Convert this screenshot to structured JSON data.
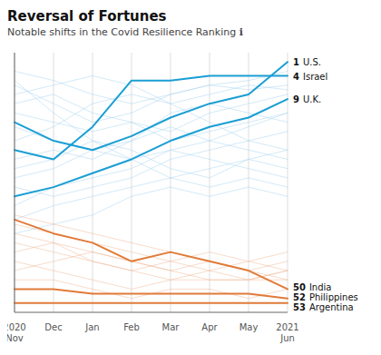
{
  "chart_data": {
    "type": "line",
    "title": "Reversal of Fortunes",
    "subtitle": "Notable shifts in the Covid Resilience Ranking ℹ",
    "categories": [
      "2020\nNov",
      "Dec",
      "Jan",
      "Feb",
      "Mar",
      "Apr",
      "May",
      "2021\nJun"
    ],
    "ylim": [
      55,
      -1
    ],
    "grid": true,
    "tick_labels": "x",
    "series": [
      {
        "color": "#a8d4ef",
        "values": [
          5,
          12,
          18,
          22,
          20,
          18,
          15,
          12
        ]
      },
      {
        "color": "#a8d4ef",
        "values": [
          10,
          8,
          12,
          14,
          16,
          12,
          10,
          8
        ]
      },
      {
        "color": "#a8d4ef",
        "values": [
          18,
          15,
          10,
          8,
          10,
          14,
          18,
          20
        ]
      },
      {
        "color": "#a8d4ef",
        "values": [
          22,
          20,
          22,
          18,
          15,
          18,
          20,
          22
        ]
      },
      {
        "color": "#a8d4ef",
        "values": [
          28,
          30,
          28,
          26,
          22,
          20,
          18,
          16
        ]
      },
      {
        "color": "#a8d4ef",
        "values": [
          32,
          28,
          26,
          24,
          20,
          22,
          24,
          26
        ]
      },
      {
        "color": "#a8d4ef",
        "values": [
          6,
          10,
          14,
          12,
          8,
          6,
          7,
          6
        ]
      },
      {
        "color": "#a8d4ef",
        "values": [
          15,
          18,
          20,
          18,
          12,
          10,
          12,
          14
        ]
      },
      {
        "color": "#a8d4ef",
        "values": [
          24,
          22,
          18,
          20,
          24,
          26,
          22,
          20
        ]
      },
      {
        "color": "#a8d4ef",
        "values": [
          35,
          32,
          30,
          28,
          26,
          24,
          22,
          24
        ]
      },
      {
        "color": "#a8d4ef",
        "values": [
          38,
          36,
          34,
          30,
          28,
          30,
          28,
          30
        ]
      },
      {
        "color": "#a8d4ef",
        "values": [
          3,
          5,
          8,
          10,
          8,
          6,
          5,
          3
        ]
      },
      {
        "color": "#a8d4ef",
        "values": [
          8,
          6,
          4,
          6,
          10,
          8,
          6,
          7
        ]
      },
      {
        "color": "#a8d4ef",
        "values": [
          12,
          14,
          16,
          14,
          18,
          16,
          14,
          12
        ]
      },
      {
        "color": "#a8d4ef",
        "values": [
          26,
          24,
          20,
          22,
          26,
          28,
          26,
          28
        ]
      },
      {
        "color": "#f0b896",
        "values": [
          40,
          42,
          44,
          46,
          44,
          42,
          44,
          46
        ]
      },
      {
        "color": "#f0b896",
        "values": [
          44,
          46,
          48,
          50,
          48,
          46,
          48,
          48
        ]
      },
      {
        "color": "#f0b896",
        "values": [
          46,
          44,
          42,
          44,
          46,
          48,
          48,
          46
        ]
      },
      {
        "color": "#f0b896",
        "values": [
          36,
          38,
          40,
          42,
          44,
          46,
          44,
          42
        ]
      },
      {
        "color": "#f0b896",
        "values": [
          42,
          40,
          42,
          44,
          46,
          44,
          46,
          48
        ]
      },
      {
        "color": "#f0b896",
        "values": [
          48,
          48,
          50,
          52,
          50,
          50,
          52,
          50
        ]
      },
      {
        "color": "#f0b896",
        "values": [
          38,
          40,
          44,
          46,
          48,
          48,
          48,
          46
        ]
      },
      {
        "color": "#f0b896",
        "values": [
          34,
          36,
          38,
          40,
          42,
          44,
          46,
          44
        ]
      },
      {
        "name": "U.S.",
        "color": "#1a9ed4",
        "values": [
          14,
          18,
          20,
          17,
          13,
          10,
          8,
          1
        ]
      },
      {
        "name": "Israel",
        "color": "#1a9ed4",
        "values": [
          20,
          22,
          15,
          5,
          5,
          4,
          4,
          4
        ]
      },
      {
        "name": "U.K.",
        "color": "#1a9ed4",
        "values": [
          30,
          28,
          25,
          22,
          18,
          15,
          13,
          9
        ]
      },
      {
        "name": "India",
        "color": "#e07b39",
        "values": [
          35,
          38,
          40,
          44,
          42,
          44,
          46,
          50
        ]
      },
      {
        "name": "Philippines",
        "color": "#e07b39",
        "values": [
          50,
          50,
          51,
          51,
          51,
          51,
          51,
          52
        ]
      },
      {
        "name": "Argentina",
        "color": "#e07b39",
        "values": [
          53,
          53,
          53,
          53,
          53,
          53,
          53,
          53
        ]
      }
    ]
  }
}
